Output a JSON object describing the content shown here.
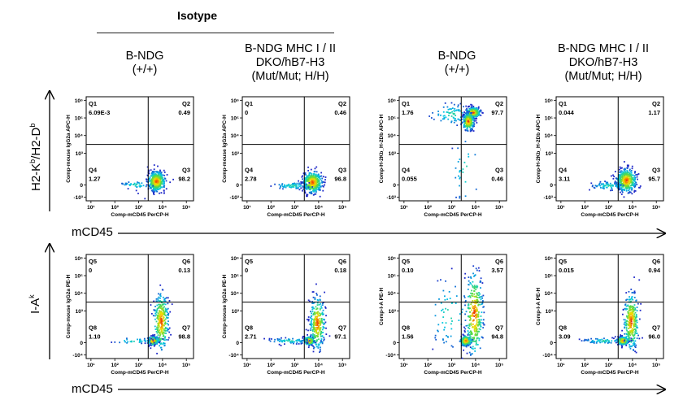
{
  "header": {
    "isotype": "Isotype"
  },
  "columns": [
    {
      "line1": "B-NDG",
      "line2": "(+/+)"
    },
    {
      "line1": "B-NDG MHC I / II",
      "line2": "DKO/hB7-H3",
      "line3": "(Mut/Mut; H/H)"
    },
    {
      "line1": "B-NDG",
      "line2": "(+/+)"
    },
    {
      "line1": "B-NDG MHC I / II",
      "line2": "DKO/hB7-H3",
      "line3": "(Mut/Mut; H/H)"
    }
  ],
  "rows": [
    {
      "label_main": "H2-K",
      "label_sup1": "b",
      "label_mid": "/H2-D",
      "label_sup2": "b"
    },
    {
      "label_main": "I-A",
      "label_sup1": "k"
    }
  ],
  "xaxis_label": "mCD45",
  "chart_data": [
    {
      "type": "scatter",
      "column": 1,
      "row": 1,
      "xlabel": "Comp-mCD45 PerCP-H",
      "ylabel": "Comp-mouse IgG2a APC-H",
      "x_ticks": [
        "10¹",
        "10²",
        "10³",
        "10⁴",
        "10⁵"
      ],
      "y_ticks": [
        "10⁶",
        "10⁵",
        "10⁴",
        "10³",
        "0",
        "-10³"
      ],
      "quadrants": [
        {
          "name": "Q1",
          "value": "6.09E-3"
        },
        {
          "name": "Q2",
          "value": "0.49"
        },
        {
          "name": "Q4",
          "value": "1.27"
        },
        {
          "name": "Q3",
          "value": "98.2"
        }
      ],
      "clusters": [
        {
          "x": 3.75,
          "y": 0.4,
          "spread": [
            0.18,
            0.28
          ],
          "n": 430
        },
        {
          "x": 2.9,
          "y": 0.2,
          "spread": [
            0.35,
            0.1
          ],
          "n": 40
        }
      ]
    },
    {
      "type": "scatter",
      "column": 2,
      "row": 1,
      "xlabel": "Comp-mCD45 PerCP-H",
      "ylabel": "Comp-mouse IgG2a APC-H",
      "x_ticks": [
        "10¹",
        "10²",
        "10³",
        "10⁴",
        "10⁵"
      ],
      "y_ticks": [
        "10⁶",
        "10⁵",
        "10⁴",
        "10³",
        "0",
        "-10³"
      ],
      "quadrants": [
        {
          "name": "Q1",
          "value": "0"
        },
        {
          "name": "Q2",
          "value": "0.46"
        },
        {
          "name": "Q4",
          "value": "2.78"
        },
        {
          "name": "Q3",
          "value": "96.8"
        }
      ],
      "clusters": [
        {
          "x": 3.75,
          "y": 0.35,
          "spread": [
            0.2,
            0.3
          ],
          "n": 400
        },
        {
          "x": 2.9,
          "y": 0.15,
          "spread": [
            0.4,
            0.1
          ],
          "n": 70
        }
      ]
    },
    {
      "type": "scatter",
      "column": 3,
      "row": 1,
      "xlabel": "Comp-mCD45 PerCP-H",
      "ylabel": "Comp-H-2Kb_H-2Db APC-H",
      "x_ticks": [
        "10¹",
        "10²",
        "10³",
        "10⁴",
        "10⁵"
      ],
      "y_ticks": [
        "10⁶",
        "10⁵",
        "10⁴",
        "10³",
        "0",
        "-10³"
      ],
      "quadrants": [
        {
          "name": "Q1",
          "value": "1.76"
        },
        {
          "name": "Q2",
          "value": "97.7"
        },
        {
          "name": "Q4",
          "value": "0.055"
        },
        {
          "name": "Q3",
          "value": "0.46"
        }
      ],
      "clusters": [
        {
          "x": 3.9,
          "y": 4.3,
          "spread": [
            0.15,
            0.15
          ],
          "n": 260
        },
        {
          "x": 3.7,
          "y": 3.8,
          "spread": [
            0.12,
            0.25
          ],
          "n": 220
        },
        {
          "x": 3.0,
          "y": 4.2,
          "spread": [
            0.45,
            0.3
          ],
          "n": 70
        },
        {
          "x": 3.6,
          "y": 1.0,
          "spread": [
            0.3,
            1.0
          ],
          "n": 30
        }
      ]
    },
    {
      "type": "scatter",
      "column": 4,
      "row": 1,
      "xlabel": "Comp-mCD45 PerCP-H",
      "ylabel": "Comp-H-2Kb_H-2Db APC-H",
      "x_ticks": [
        "10¹",
        "10²",
        "10³",
        "10⁴",
        "10⁵"
      ],
      "y_ticks": [
        "10⁶",
        "10⁵",
        "10⁴",
        "10³",
        "0",
        "-10³"
      ],
      "quadrants": [
        {
          "name": "Q1",
          "value": "0.044"
        },
        {
          "name": "Q2",
          "value": "1.17"
        },
        {
          "name": "Q4",
          "value": "3.11"
        },
        {
          "name": "Q3",
          "value": "95.7"
        }
      ],
      "clusters": [
        {
          "x": 3.75,
          "y": 0.45,
          "spread": [
            0.2,
            0.32
          ],
          "n": 420
        },
        {
          "x": 3.0,
          "y": 0.15,
          "spread": [
            0.35,
            0.12
          ],
          "n": 70
        }
      ]
    },
    {
      "type": "scatter",
      "column": 1,
      "row": 2,
      "xlabel": "Comp-mCD45 PerCP-H",
      "ylabel": "Comp-mouse IgG2a PE-H",
      "x_ticks": [
        "10¹",
        "10²",
        "10³",
        "10⁴",
        "10⁵"
      ],
      "y_ticks": [
        "10⁶",
        "10⁵",
        "10⁴",
        "10³",
        "0",
        "-10⁴"
      ],
      "quadrants": [
        {
          "name": "Q5",
          "value": "0"
        },
        {
          "name": "Q6",
          "value": "0.13"
        },
        {
          "name": "Q8",
          "value": "1.10"
        },
        {
          "name": "Q7",
          "value": "98.8"
        }
      ],
      "clusters": [
        {
          "x": 3.6,
          "y": 0.3,
          "spread": [
            0.12,
            0.12
          ],
          "n": 200
        },
        {
          "x": 3.95,
          "y": 1.4,
          "spread": [
            0.15,
            0.8
          ],
          "n": 300
        },
        {
          "x": 2.8,
          "y": 0.3,
          "spread": [
            0.45,
            0.08
          ],
          "n": 40
        }
      ]
    },
    {
      "type": "scatter",
      "column": 2,
      "row": 2,
      "xlabel": "Comp-mCD45 PerCP-H",
      "ylabel": "Comp-mouse IgG2a PE-H",
      "x_ticks": [
        "10¹",
        "10²",
        "10³",
        "10⁴",
        "10⁵"
      ],
      "y_ticks": [
        "10⁶",
        "10⁵",
        "10⁴",
        "10³",
        "0",
        "-10⁴"
      ],
      "quadrants": [
        {
          "name": "Q5",
          "value": "0"
        },
        {
          "name": "Q6",
          "value": "0.18"
        },
        {
          "name": "Q8",
          "value": "2.71"
        },
        {
          "name": "Q7",
          "value": "97.1"
        }
      ],
      "clusters": [
        {
          "x": 3.6,
          "y": 0.3,
          "spread": [
            0.12,
            0.12
          ],
          "n": 200
        },
        {
          "x": 3.95,
          "y": 1.3,
          "spread": [
            0.15,
            0.75
          ],
          "n": 280
        },
        {
          "x": 2.8,
          "y": 0.3,
          "spread": [
            0.45,
            0.08
          ],
          "n": 70
        }
      ]
    },
    {
      "type": "scatter",
      "column": 3,
      "row": 2,
      "xlabel": "Comp-mCD45 PerCP-H",
      "ylabel": "Comp-I-A PE-H",
      "x_ticks": [
        "10¹",
        "10²",
        "10³",
        "10⁴",
        "10⁵"
      ],
      "y_ticks": [
        "10⁶",
        "10⁵",
        "10⁴",
        "10³",
        "0",
        "-10⁴"
      ],
      "quadrants": [
        {
          "name": "Q5",
          "value": "0.10"
        },
        {
          "name": "Q6",
          "value": "3.57"
        },
        {
          "name": "Q8",
          "value": "1.56"
        },
        {
          "name": "Q7",
          "value": "94.8"
        }
      ],
      "clusters": [
        {
          "x": 3.6,
          "y": 0.3,
          "spread": [
            0.12,
            0.15
          ],
          "n": 200
        },
        {
          "x": 3.95,
          "y": 1.8,
          "spread": [
            0.18,
            1.2
          ],
          "n": 320
        },
        {
          "x": 2.9,
          "y": 1.8,
          "spread": [
            0.45,
            1.0
          ],
          "n": 60
        }
      ]
    },
    {
      "type": "scatter",
      "column": 4,
      "row": 2,
      "xlabel": "Comp-mCD45 PerCP-H",
      "ylabel": "Comp-I-A PE-H",
      "x_ticks": [
        "10¹",
        "10²",
        "10³",
        "10⁴",
        "10⁵"
      ],
      "y_ticks": [
        "10⁶",
        "10⁵",
        "10⁴",
        "10³",
        "0",
        "-10⁴"
      ],
      "quadrants": [
        {
          "name": "Q5",
          "value": "0.015"
        },
        {
          "name": "Q6",
          "value": "0.94"
        },
        {
          "name": "Q8",
          "value": "3.09"
        },
        {
          "name": "Q7",
          "value": "96.0"
        }
      ],
      "clusters": [
        {
          "x": 3.6,
          "y": 0.3,
          "spread": [
            0.12,
            0.12
          ],
          "n": 200
        },
        {
          "x": 3.95,
          "y": 1.4,
          "spread": [
            0.15,
            0.8
          ],
          "n": 300
        },
        {
          "x": 2.8,
          "y": 0.3,
          "spread": [
            0.45,
            0.08
          ],
          "n": 60
        }
      ]
    }
  ]
}
